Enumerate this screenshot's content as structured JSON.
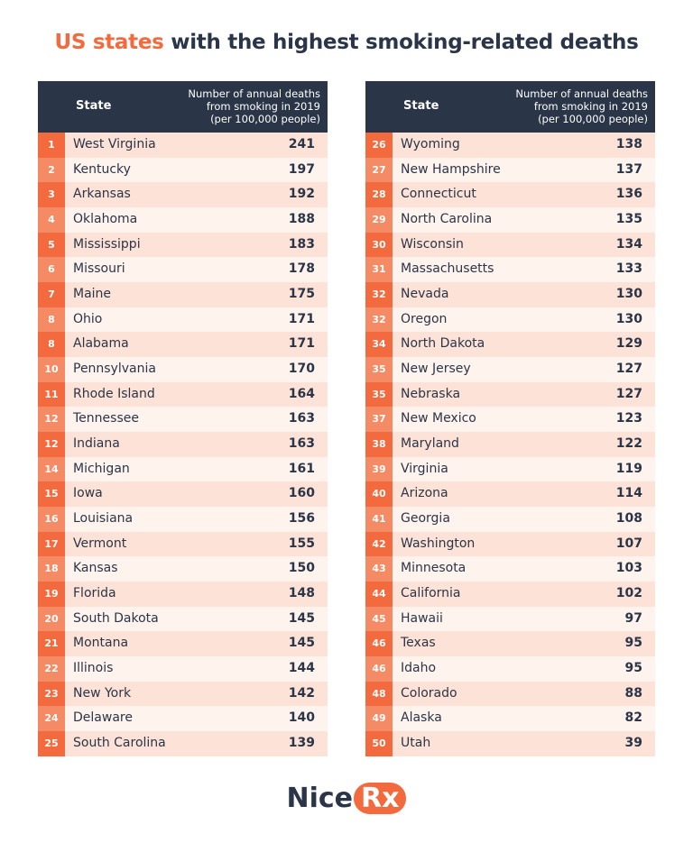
{
  "title": {
    "highlight": "US states",
    "rest": "with the highest smoking-related deaths"
  },
  "tables": [
    {
      "header": {
        "state": "State",
        "value": [
          "Number of annual deaths",
          "from smoking in 2019",
          "(per 100,000 people)"
        ]
      },
      "rows": [
        [
          "1",
          "West Virginia",
          "241"
        ],
        [
          "2",
          "Kentucky",
          "197"
        ],
        [
          "3",
          "Arkansas",
          "192"
        ],
        [
          "4",
          "Oklahoma",
          "188"
        ],
        [
          "5",
          "Mississippi",
          "183"
        ],
        [
          "6",
          "Missouri",
          "178"
        ],
        [
          "7",
          "Maine",
          "175"
        ],
        [
          "8",
          "Ohio",
          "171"
        ],
        [
          "8",
          "Alabama",
          "171"
        ],
        [
          "10",
          "Pennsylvania",
          "170"
        ],
        [
          "11",
          "Rhode Island",
          "164"
        ],
        [
          "12",
          "Tennessee",
          "163"
        ],
        [
          "12",
          "Indiana",
          "163"
        ],
        [
          "14",
          "Michigan",
          "161"
        ],
        [
          "15",
          "Iowa",
          "160"
        ],
        [
          "16",
          "Louisiana",
          "156"
        ],
        [
          "17",
          "Vermont",
          "155"
        ],
        [
          "18",
          "Kansas",
          "150"
        ],
        [
          "19",
          "Florida",
          "148"
        ],
        [
          "20",
          "South Dakota",
          "145"
        ],
        [
          "21",
          "Montana",
          "145"
        ],
        [
          "22",
          "Illinois",
          "144"
        ],
        [
          "23",
          "New York",
          "142"
        ],
        [
          "24",
          "Delaware",
          "140"
        ],
        [
          "25",
          "South Carolina",
          "139"
        ]
      ]
    },
    {
      "header": {
        "state": "State",
        "value": [
          "Number of annual deaths",
          "from smoking in 2019",
          "(per 100,000 people)"
        ]
      },
      "rows": [
        [
          "26",
          "Wyoming",
          "138"
        ],
        [
          "27",
          "New Hampshire",
          "137"
        ],
        [
          "28",
          "Connecticut",
          "136"
        ],
        [
          "29",
          "North Carolina",
          "135"
        ],
        [
          "30",
          "Wisconsin",
          "134"
        ],
        [
          "31",
          "Massachusetts",
          "133"
        ],
        [
          "32",
          "Nevada",
          "130"
        ],
        [
          "32",
          "Oregon",
          "130"
        ],
        [
          "34",
          "North Dakota",
          "129"
        ],
        [
          "35",
          "New Jersey",
          "127"
        ],
        [
          "35",
          "Nebraska",
          "127"
        ],
        [
          "37",
          "New Mexico",
          "123"
        ],
        [
          "38",
          "Maryland",
          "122"
        ],
        [
          "39",
          "Virginia",
          "119"
        ],
        [
          "40",
          "Arizona",
          "114"
        ],
        [
          "41",
          "Georgia",
          "108"
        ],
        [
          "42",
          "Washington",
          "107"
        ],
        [
          "43",
          "Minnesota",
          "103"
        ],
        [
          "44",
          "California",
          "102"
        ],
        [
          "45",
          "Hawaii",
          "97"
        ],
        [
          "46",
          "Texas",
          "95"
        ],
        [
          "46",
          "Idaho",
          "95"
        ],
        [
          "48",
          "Colorado",
          "88"
        ],
        [
          "49",
          "Alaska",
          "82"
        ],
        [
          "50",
          "Utah",
          "39"
        ]
      ]
    }
  ],
  "logo": {
    "first": "Nice",
    "second": "Rx"
  }
}
